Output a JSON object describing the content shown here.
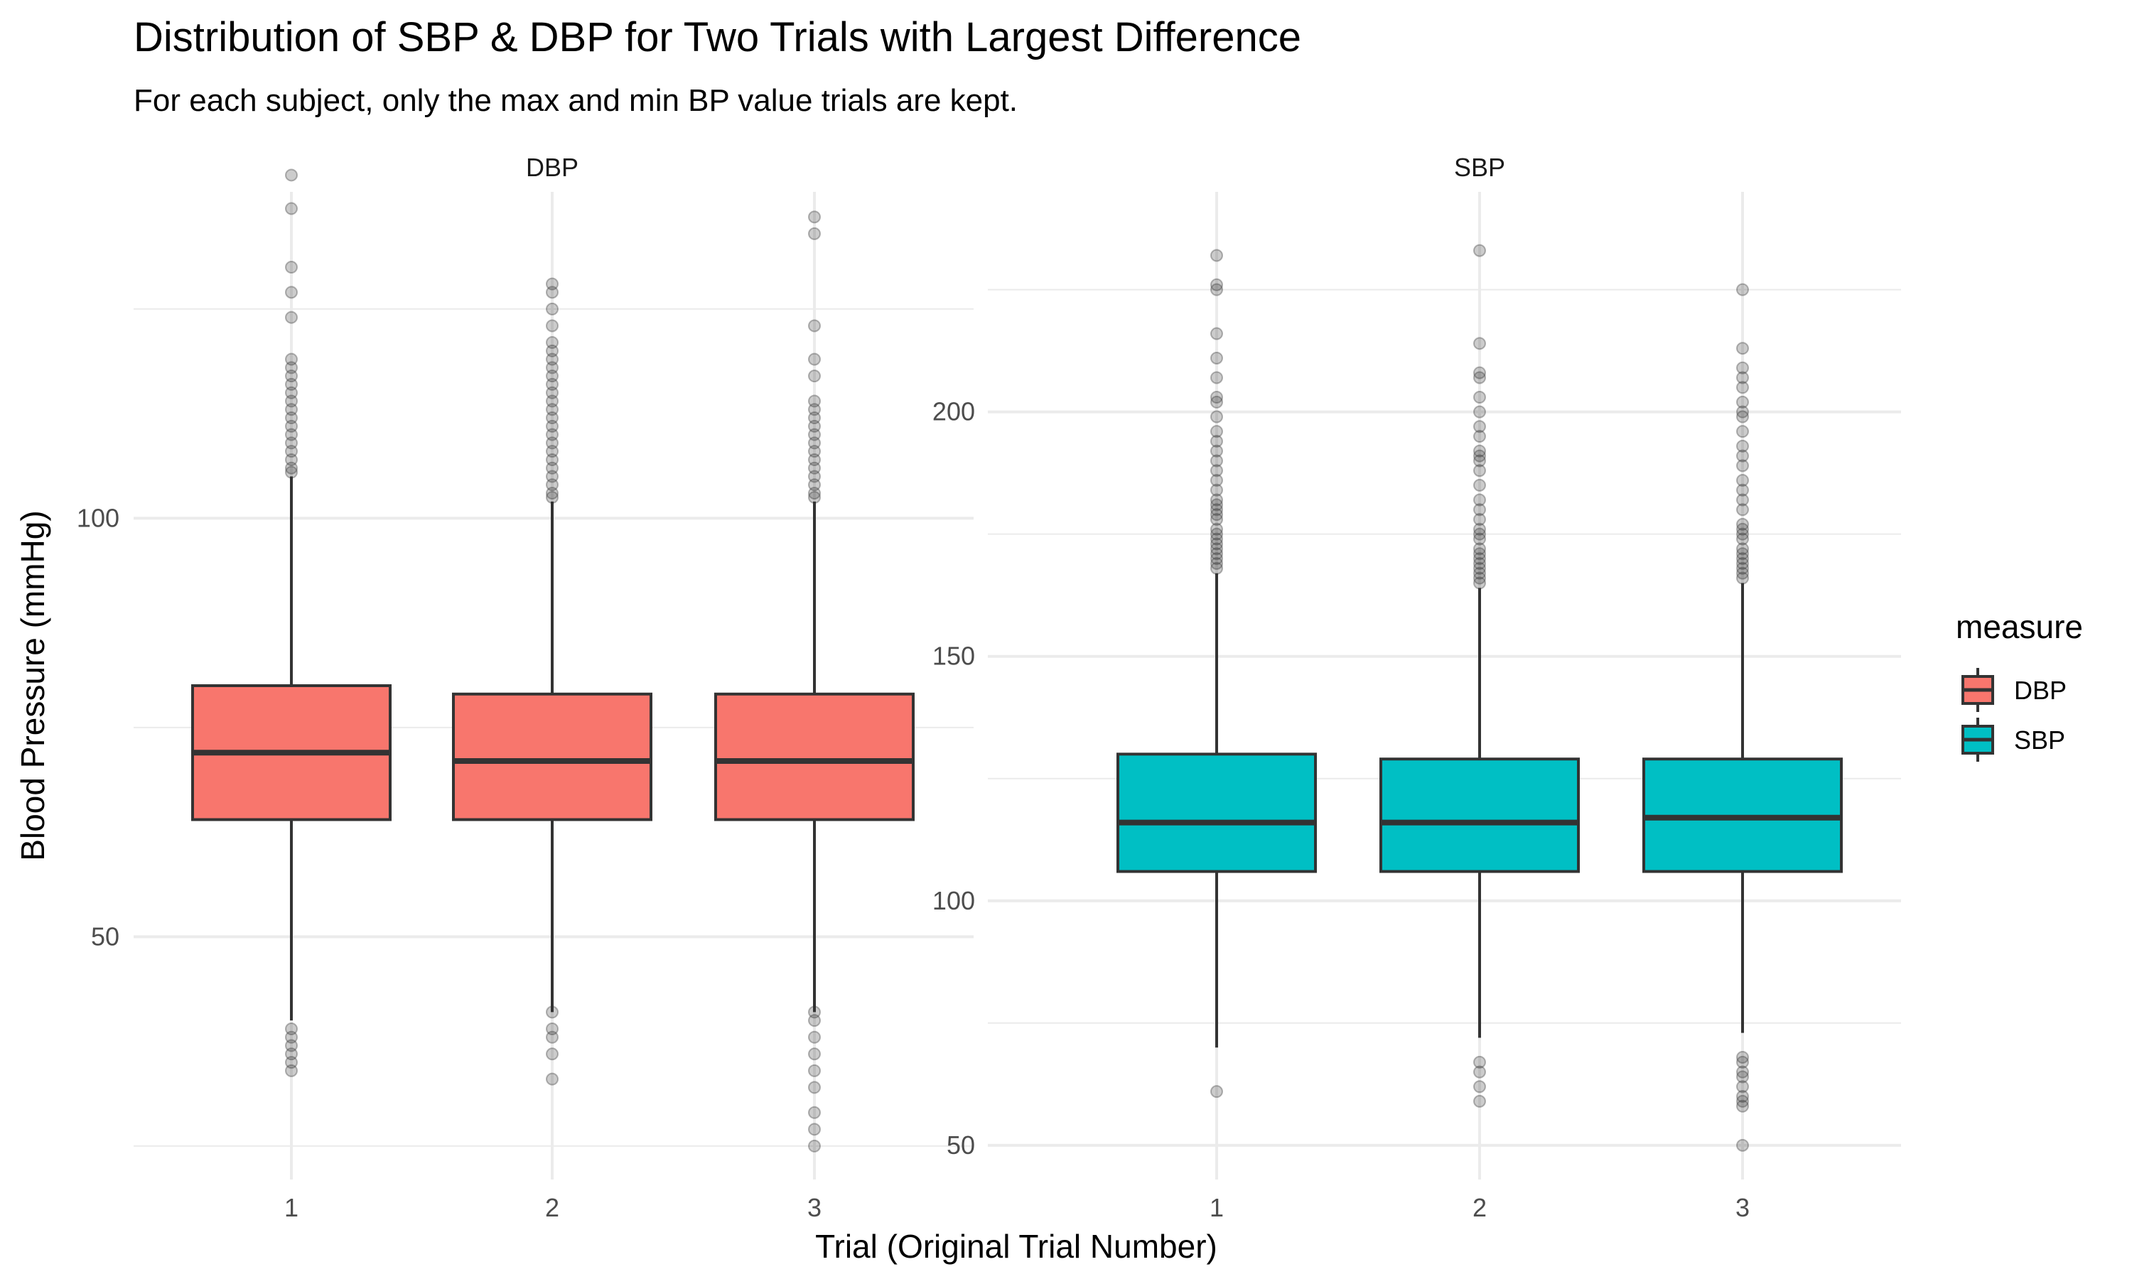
{
  "chart_data": {
    "type": "boxplot",
    "title": "Distribution of SBP & DBP for Two Trials with Largest Difference",
    "subtitle": "For each subject, only the max and min BP value trials are kept.",
    "xlabel": "Trial (Original Trial Number)",
    "ylabel": "Blood Pressure (mmHg)",
    "categories": [
      "1",
      "2",
      "3"
    ],
    "legend": {
      "title": "measure",
      "position": "right",
      "entries": [
        {
          "label": "DBP",
          "color": "#F8766D"
        },
        {
          "label": "SBP",
          "color": "#00BFC4"
        }
      ]
    },
    "grid": true,
    "facets": [
      {
        "label": "DBP",
        "color": "#F8766D",
        "ylim": [
          21,
          139
        ],
        "yticks": [
          50,
          100
        ],
        "minor_yticks": [
          25,
          75,
          125
        ],
        "boxes": [
          {
            "category": "1",
            "q1": 64,
            "median": 72,
            "q3": 80,
            "whisker_low": 40,
            "whisker_high": 105,
            "outliers": [
              141,
              137,
              130,
              127,
              124,
              119,
              118,
              117,
              116,
              115,
              114,
              113,
              112,
              111,
              110,
              109,
              108,
              107,
              106,
              105.5,
              39,
              38,
              37,
              36,
              35,
              34
            ]
          },
          {
            "category": "2",
            "q1": 64,
            "median": 71,
            "q3": 79,
            "whisker_low": 41,
            "whisker_high": 102,
            "outliers": [
              128,
              127,
              125,
              123,
              121,
              120,
              119,
              118,
              117,
              116,
              115,
              114,
              113,
              112,
              111,
              110,
              109,
              108,
              107,
              106,
              105,
              104,
              103,
              102.5,
              41,
              39,
              38,
              36,
              33
            ]
          },
          {
            "category": "3",
            "q1": 64,
            "median": 71,
            "q3": 79,
            "whisker_low": 41,
            "whisker_high": 102,
            "outliers": [
              136,
              134,
              123,
              119,
              117,
              114,
              113,
              112,
              111,
              110,
              109,
              108,
              107,
              106,
              105,
              104,
              103,
              102.5,
              41,
              40,
              38,
              36,
              34,
              32,
              29,
              27,
              25
            ]
          }
        ]
      },
      {
        "label": "SBP",
        "color": "#00BFC4",
        "ylim": [
          43,
          245
        ],
        "yticks": [
          50,
          100,
          150,
          200
        ],
        "minor_yticks": [
          75,
          125,
          175,
          225
        ],
        "boxes": [
          {
            "category": "1",
            "q1": 106,
            "median": 116,
            "q3": 130,
            "whisker_low": 70,
            "whisker_high": 167,
            "outliers": [
              232,
              226,
              225,
              216,
              211,
              207,
              203,
              202,
              199,
              196,
              194,
              192,
              190,
              188,
              186,
              184,
              182,
              181,
              180,
              179,
              178,
              176,
              175,
              174,
              173,
              172,
              171,
              170,
              169,
              168,
              61
            ]
          },
          {
            "category": "2",
            "q1": 106,
            "median": 116,
            "q3": 129,
            "whisker_low": 72,
            "whisker_high": 164,
            "outliers": [
              233,
              214,
              208,
              207,
              203,
              200,
              197,
              195,
              192,
              191,
              190,
              188,
              185,
              182,
              180,
              178,
              176,
              175,
              174,
              172,
              171,
              170,
              169,
              168,
              167,
              166,
              165,
              67,
              65,
              62,
              59
            ]
          },
          {
            "category": "3",
            "q1": 106,
            "median": 117,
            "q3": 129,
            "whisker_low": 73,
            "whisker_high": 165,
            "outliers": [
              225,
              213,
              209,
              207,
              205,
              202,
              200,
              199,
              196,
              193,
              191,
              189,
              186,
              184,
              182,
              180,
              177,
              176,
              175,
              174,
              172,
              171,
              170,
              169,
              168,
              167,
              166,
              68,
              67,
              65,
              64,
              62,
              60,
              59,
              58,
              50
            ]
          }
        ]
      }
    ]
  }
}
